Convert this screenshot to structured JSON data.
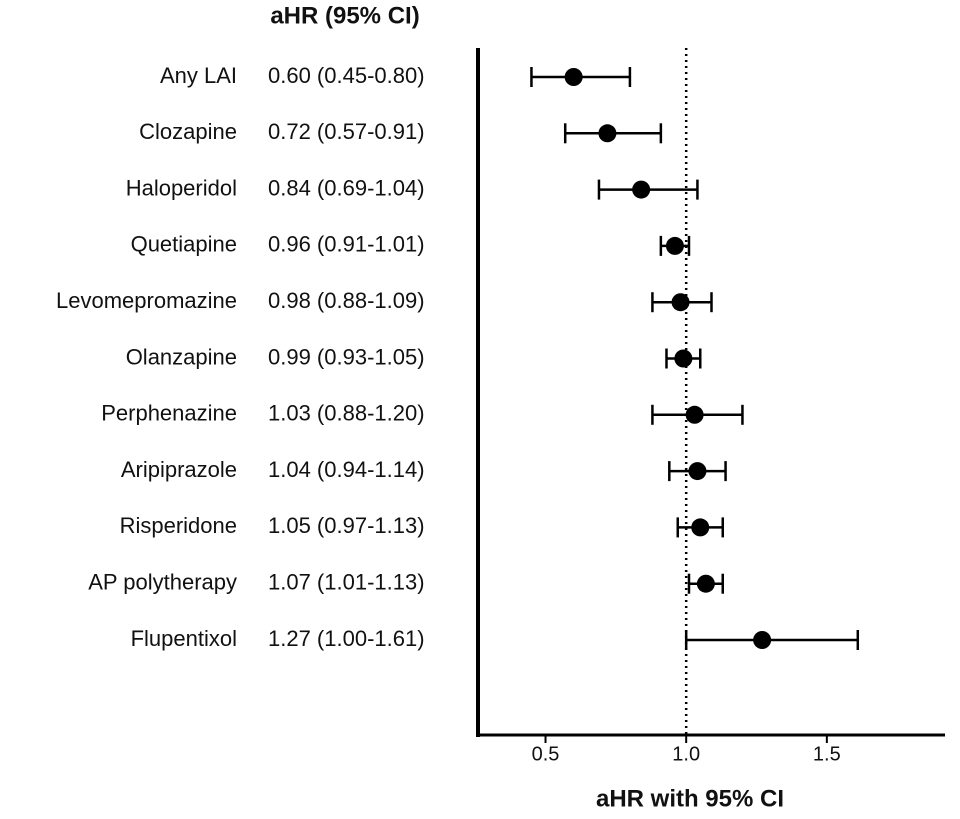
{
  "chart_data": {
    "type": "forest",
    "title": "aHR (95% CI)",
    "x_label": "aHR with 95% CI",
    "categories": [
      "Any LAI",
      "Clozapine",
      "Haloperidol",
      "Quetiapine",
      "Levomepromazine",
      "Olanzapine",
      "Perphenazine",
      "Aripiprazole",
      "Risperidone",
      "AP polytherapy",
      "Flupentixol"
    ],
    "values": [
      0.6,
      0.72,
      0.84,
      0.96,
      0.98,
      0.99,
      1.03,
      1.04,
      1.05,
      1.07,
      1.27
    ],
    "lower": [
      0.45,
      0.57,
      0.69,
      0.91,
      0.88,
      0.93,
      0.88,
      0.94,
      0.97,
      1.01,
      1.0
    ],
    "upper": [
      0.8,
      0.91,
      1.04,
      1.01,
      1.09,
      1.05,
      1.2,
      1.14,
      1.13,
      1.13,
      1.61
    ],
    "value_labels": [
      "0.60 (0.45-0.80)",
      "0.72 (0.57-0.91)",
      "0.84 (0.69-1.04)",
      "0.96 (0.91-1.01)",
      "0.98 (0.88-1.09)",
      "0.99 (0.93-1.05)",
      "1.03 (0.88-1.20)",
      "1.04 (0.94-1.14)",
      "1.05 (0.97-1.13)",
      "1.07 (1.01-1.13)",
      "1.27 (1.00-1.61)"
    ],
    "color": "#000000",
    "xlim": [
      0.26,
      1.92
    ],
    "xticks": [
      0.5,
      {
        "value": 1.0,
        "label": "1.0"
      },
      1.5
    ],
    "reference_line": 1.0
  }
}
